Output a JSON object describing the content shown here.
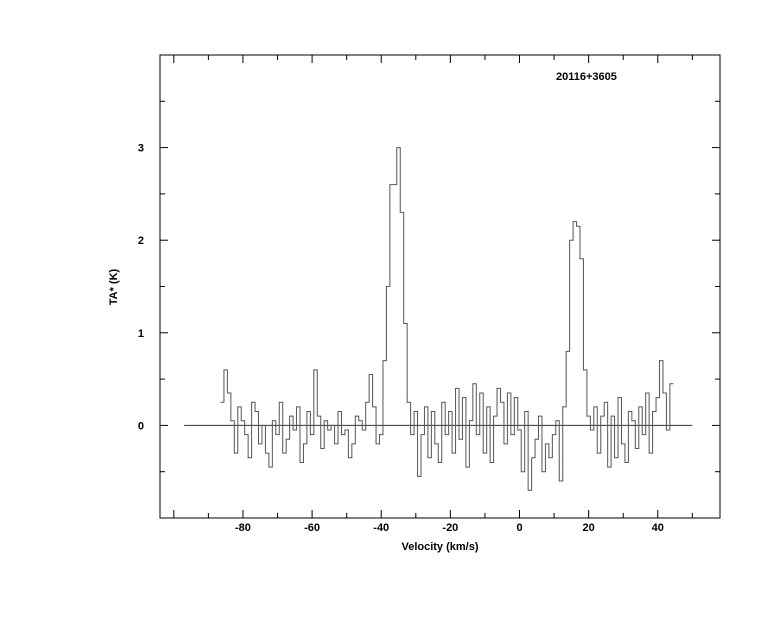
{
  "chart_data": {
    "type": "line",
    "style": "histogram-step",
    "title": "20116+3605",
    "xlabel": "Velocity (km/s)",
    "ylabel": "TA* (K)",
    "xlim": [
      -104,
      58
    ],
    "ylim": [
      -1,
      4
    ],
    "xticks": [
      -80,
      -60,
      -40,
      -20,
      0,
      20,
      40
    ],
    "yticks": [
      0,
      1,
      2,
      3
    ],
    "baseline": {
      "y": 0,
      "x_range": [
        -97,
        50
      ]
    },
    "grid": false,
    "line_color": "#555555",
    "x_start": -86,
    "x_step": 1,
    "values": [
      0.25,
      0.6,
      0.35,
      0.05,
      -0.3,
      0.2,
      0.05,
      -0.1,
      -0.35,
      0.25,
      0.15,
      -0.2,
      0.0,
      -0.3,
      -0.45,
      0.05,
      -0.1,
      0.25,
      -0.3,
      -0.15,
      0.1,
      -0.05,
      0.2,
      -0.4,
      -0.2,
      0.15,
      -0.1,
      0.6,
      0.1,
      -0.25,
      0.05,
      -0.05,
      0.0,
      -0.2,
      0.15,
      -0.1,
      -0.05,
      -0.35,
      -0.2,
      0.1,
      0.05,
      -0.05,
      0.25,
      0.55,
      0.2,
      -0.2,
      -0.1,
      0.7,
      1.5,
      2.6,
      2.6,
      3.0,
      2.3,
      1.1,
      0.25,
      -0.1,
      0.15,
      -0.55,
      -0.1,
      0.2,
      -0.35,
      0.15,
      -0.2,
      -0.4,
      0.25,
      -0.1,
      0.15,
      -0.3,
      0.4,
      -0.15,
      0.3,
      -0.45,
      0.05,
      0.45,
      -0.1,
      0.35,
      -0.3,
      0.2,
      -0.4,
      0.1,
      0.4,
      0.25,
      -0.2,
      0.35,
      -0.1,
      0.3,
      -0.05,
      -0.5,
      0.15,
      -0.7,
      -0.35,
      -0.15,
      0.1,
      -0.5,
      -0.2,
      -0.35,
      -0.1,
      0.05,
      -0.6,
      0.2,
      0.8,
      2.0,
      2.2,
      2.15,
      1.8,
      0.6,
      0.1,
      -0.05,
      0.2,
      -0.3,
      0.1,
      0.25,
      -0.45,
      0.1,
      -0.35,
      0.3,
      -0.2,
      -0.4,
      0.15,
      0.05,
      -0.25,
      0.2,
      -0.1,
      0.35,
      -0.3,
      0.15,
      0.3,
      0.7,
      0.35,
      -0.05,
      0.45
    ]
  }
}
